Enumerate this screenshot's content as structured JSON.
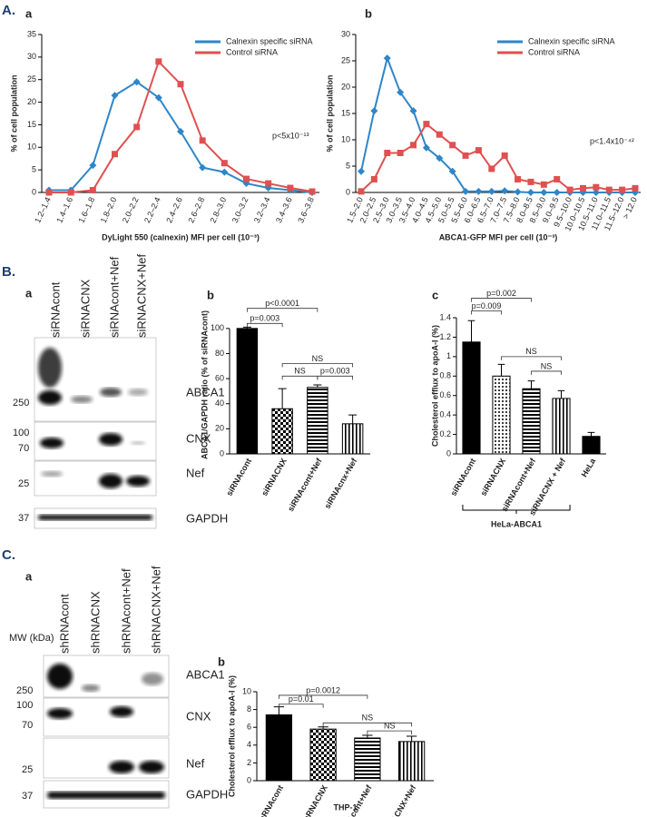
{
  "chart_data": [
    {
      "type": "line",
      "categories": [
        "1.2–1.4",
        "1.4–1.6",
        "1.6–1.8",
        "1.8–2.0",
        "2.0–2.2",
        "2.2–2.4",
        "2.4–2.6",
        "2.6–2.8",
        "2.8–3.0",
        "3.0–3.2",
        "3.2–3.4",
        "3.4–3.6",
        "3.6–3.8"
      ],
      "series": [
        {
          "name": "Calnexin specific siRNA",
          "color": "#2e86c8",
          "marker": "diamond",
          "values": [
            0.5,
            0.5,
            6,
            21.5,
            24.5,
            21,
            13.5,
            5.5,
            4.5,
            2,
            1,
            0.5,
            0
          ]
        },
        {
          "name": "Control siRNA",
          "color": "#e05050",
          "marker": "square",
          "values": [
            0,
            0,
            0.5,
            8.5,
            14.5,
            29,
            24,
            11.5,
            6.5,
            3,
            2,
            1,
            0.2
          ]
        }
      ],
      "ylim": [
        0,
        35
      ],
      "yticks": [
        0,
        5,
        10,
        15,
        20,
        25,
        30,
        35
      ],
      "ylabel": "% of cell population",
      "xlabel": "DyLight 550 (calnexin) MFI per cell (10⁻³)",
      "annotation": "p<5x10⁻¹³",
      "legend": "upper right"
    },
    {
      "type": "line",
      "categories": [
        "1.5–2.0",
        "2.0–2.5",
        "2.5–3.0",
        "3.0–3.5",
        "3.5–4.0",
        "4.0–4.5",
        "4.5–5.0",
        "5.0–5.5",
        "5.5–6.0",
        "6.0–6.5",
        "6.5–7.0",
        "7.0–7.5",
        "7.5–8.0",
        "8.0–8.5",
        "8.5–9.0",
        "9.0–9.5",
        "9.5–10.0",
        "10.0–10.5",
        "10.5–11.0",
        "11.0–11.5",
        "11.5–12.0",
        "> 12.0"
      ],
      "series": [
        {
          "name": "Calnexin specific siRNA",
          "color": "#2e86c8",
          "marker": "diamond",
          "values": [
            4,
            15.5,
            25.5,
            19,
            15.5,
            8.5,
            6.5,
            4,
            0.2,
            0.2,
            0.2,
            0.3,
            0.1,
            0,
            0,
            0,
            0,
            0,
            0,
            0,
            0,
            0
          ]
        },
        {
          "name": "Control siRNA",
          "color": "#e05050",
          "marker": "square",
          "values": [
            0.2,
            2.5,
            7.5,
            7.5,
            9,
            13,
            11,
            9,
            7,
            8,
            4.5,
            7,
            2.5,
            2,
            1.5,
            2.5,
            0.5,
            0.8,
            1,
            0.5,
            0.5,
            0.8
          ]
        }
      ],
      "ylim": [
        0,
        30
      ],
      "yticks": [
        0,
        5,
        10,
        15,
        20,
        25,
        30
      ],
      "ylabel": "% of cell population",
      "xlabel": "ABCA1-GFP MFI per cell (10⁻³)",
      "annotation": "p<1.4x10⁻⁴²",
      "legend": "upper right"
    },
    {
      "type": "bar",
      "categories": [
        "siRNAcont",
        "siRNACNX",
        "siRNAcont+Nef",
        "siRNAcnx+Nef"
      ],
      "values": [
        100,
        36,
        53,
        24
      ],
      "errors": [
        1,
        16,
        2,
        7
      ],
      "color": "#000000",
      "patterns": [
        "solid",
        "checker",
        "hstripe",
        "vstripe"
      ],
      "ylim": [
        0,
        110
      ],
      "yticks": [
        0,
        20,
        40,
        60,
        80,
        100
      ],
      "ylabel": "ABCA1/GAPDH ratio (% of siRNAcont)",
      "annotations": [
        "p=0.003",
        "p<0.0001",
        "NS",
        "NS",
        "p=0.003"
      ]
    },
    {
      "type": "bar",
      "categories": [
        "siRNAcont",
        "siRNACNX",
        "siRNAcont+Nef",
        "siRNACNX + Nef",
        "HeLa"
      ],
      "values": [
        1.15,
        0.8,
        0.67,
        0.57,
        0.18
      ],
      "errors": [
        0.22,
        0.12,
        0.08,
        0.08,
        0.04
      ],
      "color": "#000000",
      "patterns": [
        "solid",
        "dots",
        "hstripe",
        "vstripe",
        "solid"
      ],
      "ylim": [
        0,
        1.4
      ],
      "yticks": [
        0,
        0.2,
        0.4,
        0.6,
        0.8,
        1,
        1.2,
        1.4
      ],
      "ylabel": "Cholesterol efflux to apoA-I (%)",
      "annotations": [
        "p=0.009",
        "p=0.002",
        "NS",
        "NS"
      ],
      "group_label": "HeLa-ABCA1"
    },
    {
      "type": "bar",
      "categories": [
        "shRNAcont",
        "shRNACNX",
        "shRNAcont+Nef",
        "shRNACNX+Nef"
      ],
      "values": [
        7.4,
        5.8,
        4.8,
        4.4
      ],
      "errors": [
        0.9,
        0.25,
        0.3,
        0.6
      ],
      "color": "#000000",
      "patterns": [
        "solid",
        "checker",
        "hstripe",
        "vstripe"
      ],
      "ylim": [
        0,
        10
      ],
      "yticks": [
        0,
        2,
        4,
        6,
        8,
        10
      ],
      "ylabel": "Cholesterol efflux to apoA-I (%)",
      "annotations": [
        "p=0.01",
        "p=0.0012",
        "NS",
        "NS"
      ],
      "group_label": "THP-1"
    }
  ],
  "panel_labels": [
    "A.",
    "a",
    "b",
    "B.",
    "a",
    "b",
    "c",
    "C.",
    "a",
    "b"
  ],
  "blots": [
    {
      "lanes": [
        "siRNAcont",
        "siRNACNX",
        "siRNAcont+Nef",
        "siRNACNX+Nef"
      ],
      "proteins": [
        "ABCA1",
        "CNX",
        "Nef",
        "GAPDH"
      ],
      "markers": [
        "250",
        "100",
        "70",
        "25",
        "37"
      ]
    },
    {
      "lanes": [
        "shRNAcont",
        "shRNACNX",
        "shRNAcont+Nef",
        "shRNACNX+Nef"
      ],
      "proteins": [
        "ABCA1",
        "CNX",
        "Nef",
        "GAPDH"
      ],
      "markers": [
        "250",
        "100",
        "70",
        "25",
        "37"
      ],
      "mw_label": "MW (kDa)"
    }
  ]
}
